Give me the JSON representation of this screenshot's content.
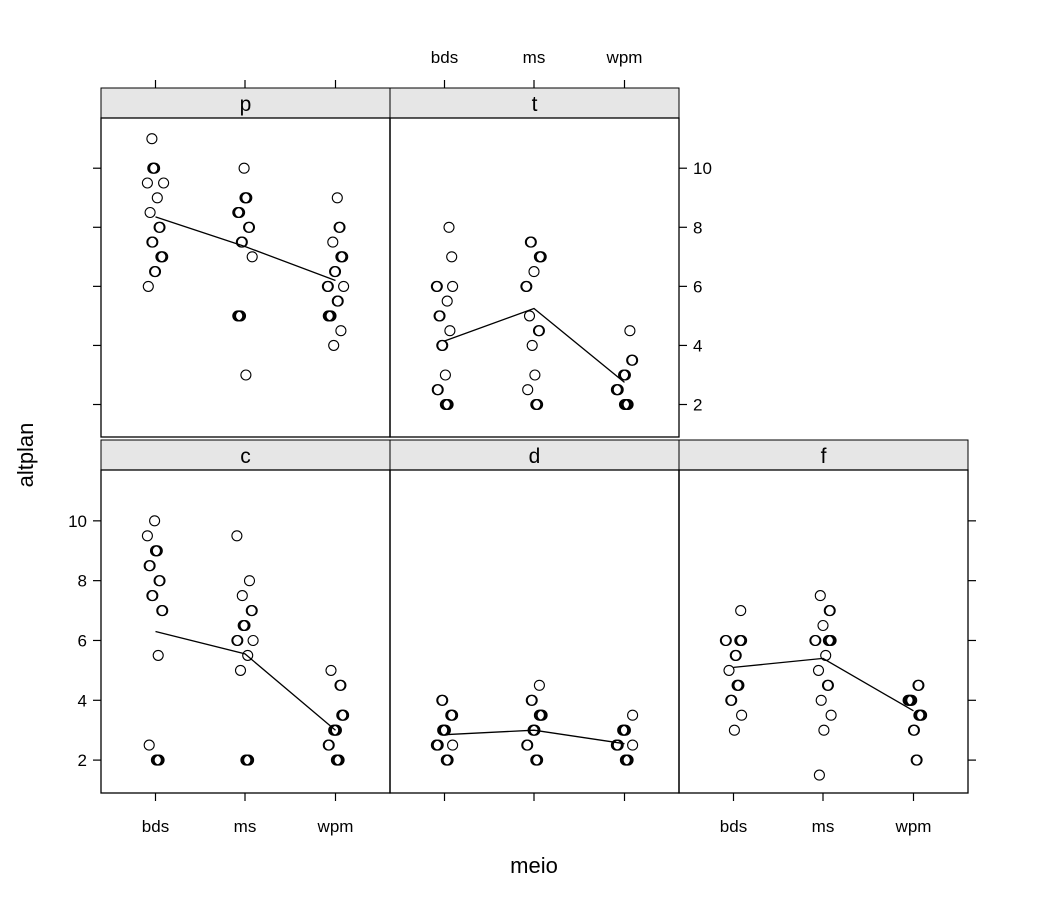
{
  "chart_data": {
    "type": "scatter",
    "layout": "lattice 3 columns x 2 rows, panels filled bottom-left first",
    "xlabel": "meio",
    "ylabel": "altplan",
    "categories": [
      "bds",
      "ms",
      "wpm"
    ],
    "yticks": [
      2,
      4,
      6,
      8,
      10
    ],
    "ylim": [
      0.9,
      11.7
    ],
    "panels": [
      {
        "label": "c",
        "points": {
          "bds": [
            10,
            9.5,
            9,
            9,
            9,
            8.5,
            8.5,
            8,
            8,
            7.5,
            7.5,
            7,
            7,
            5.5,
            2.5,
            2,
            2,
            2,
            2
          ],
          "ms": [
            9.5,
            8,
            7.5,
            7,
            7,
            6.5,
            6.5,
            6.5,
            6,
            6,
            6,
            5.5,
            5,
            2,
            2,
            2,
            2
          ],
          "wpm": [
            5,
            4.5,
            4.5,
            3.5,
            3.5,
            3.5,
            3,
            3,
            3,
            3,
            2.5,
            2.5,
            2,
            2,
            2,
            2
          ]
        },
        "means": [
          6.3,
          5.55,
          3.0
        ]
      },
      {
        "label": "d",
        "points": {
          "bds": [
            4,
            4,
            3.5,
            3.5,
            3.5,
            3,
            3,
            3,
            3,
            2.5,
            2.5,
            2.5,
            2.5,
            2,
            2,
            2
          ],
          "ms": [
            4.5,
            4,
            4,
            3.5,
            3.5,
            3.5,
            3.5,
            3,
            3,
            3,
            2.5,
            2.5,
            2,
            2,
            2
          ],
          "wpm": [
            3.5,
            3,
            3,
            3,
            3,
            2.5,
            2.5,
            2.5,
            2.5,
            2,
            2,
            2,
            2
          ]
        },
        "means": [
          2.85,
          3.0,
          2.55
        ]
      },
      {
        "label": "f",
        "points": {
          "bds": [
            7,
            6,
            6,
            6,
            6,
            6,
            5.5,
            5.5,
            5,
            4.5,
            4.5,
            4.5,
            4,
            4,
            3.5,
            3
          ],
          "ms": [
            7.5,
            7,
            7,
            6.5,
            6,
            6,
            6,
            6,
            6,
            6,
            5.5,
            5,
            4.5,
            4.5,
            4,
            3.5,
            3,
            1.5
          ],
          "wpm": [
            4.5,
            4.5,
            4,
            4,
            4,
            4,
            4,
            3.5,
            3.5,
            3.5,
            3.5,
            3,
            3,
            2,
            2
          ]
        },
        "means": [
          5.1,
          5.4,
          3.65
        ]
      },
      {
        "label": "p",
        "points": {
          "bds": [
            11,
            10,
            10,
            10,
            9.5,
            9.5,
            9,
            8.5,
            8,
            8,
            7.5,
            7.5,
            7,
            7,
            7,
            6.5,
            6.5,
            6
          ],
          "ms": [
            10,
            9,
            9,
            9,
            8.5,
            8.5,
            8.5,
            8,
            8,
            7.5,
            7.5,
            7,
            5,
            5,
            5,
            5,
            3
          ],
          "wpm": [
            9,
            8,
            8,
            7.5,
            7,
            7,
            7,
            6.5,
            6.5,
            6,
            6,
            6,
            5.5,
            5.5,
            5,
            5,
            5,
            5,
            4.5,
            4
          ]
        },
        "means": [
          8.35,
          7.35,
          6.2
        ]
      },
      {
        "label": "t",
        "points": {
          "bds": [
            8,
            7,
            6,
            6,
            6,
            5.5,
            5,
            5,
            4.5,
            4,
            4,
            3,
            2.5,
            2.5,
            2,
            2,
            2,
            2
          ],
          "ms": [
            7.5,
            7.5,
            7,
            7,
            7,
            6.5,
            6,
            6,
            5,
            4.5,
            4.5,
            4,
            3,
            2.5,
            2,
            2,
            2
          ],
          "wpm": [
            4.5,
            3.5,
            3.5,
            3,
            3,
            3,
            2.5,
            2.5,
            2.5,
            2,
            2,
            2,
            2,
            2
          ]
        },
        "means": [
          4.15,
          5.25,
          2.75
        ]
      }
    ]
  }
}
